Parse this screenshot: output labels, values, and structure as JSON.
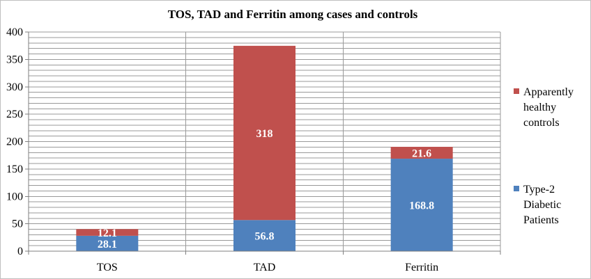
{
  "chart_data": {
    "type": "bar",
    "stacked": true,
    "title": "TOS, TAD and Ferritin among cases and controls",
    "xlabel": "",
    "ylabel": "",
    "categories": [
      "TOS",
      "TAD",
      "Ferritin"
    ],
    "ylim": [
      0,
      400
    ],
    "yticks": [
      0,
      50,
      100,
      150,
      200,
      250,
      300,
      350,
      400
    ],
    "grid": true,
    "legend_position": "right",
    "series": [
      {
        "name": "Type-2 Diabetic Patients",
        "legend_lines": [
          "Type-2",
          "Diabetic",
          "Patients"
        ],
        "values": [
          28.1,
          56.8,
          168.8
        ],
        "labels": [
          "28.1",
          "56.8",
          "168.8"
        ],
        "color": "#4f81bd"
      },
      {
        "name": "Apparently healthy controls",
        "legend_lines": [
          "Apparently",
          "healthy",
          "controls"
        ],
        "values": [
          12.1,
          318,
          21.6
        ],
        "labels": [
          "12.1",
          "318",
          "21.6"
        ],
        "color": "#c0504d"
      }
    ]
  },
  "colors": {
    "grid": "#999999",
    "axis": "#7f7f7f",
    "text": "#000000",
    "data_label": "#ffffff"
  }
}
